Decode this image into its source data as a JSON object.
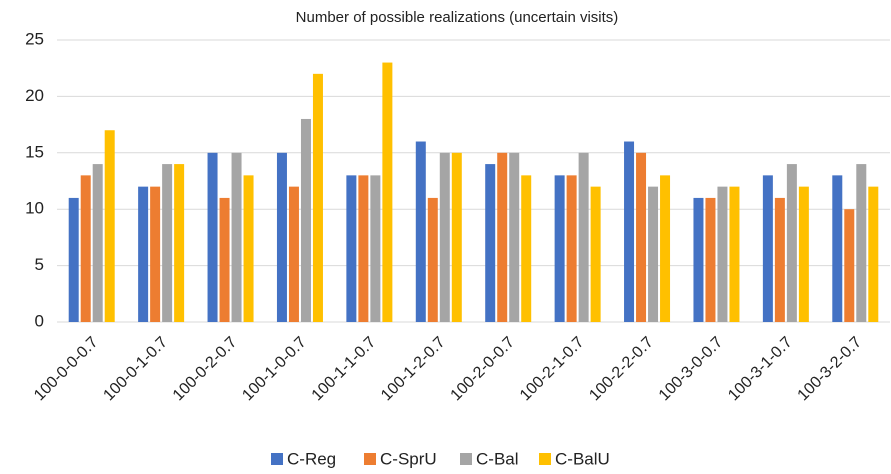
{
  "chart_data": {
    "type": "bar",
    "title": "Number of possible realizations (uncertain visits)",
    "categories": [
      "100-0-0-0.7",
      "100-0-1-0.7",
      "100-0-2-0.7",
      "100-1-0-0.7",
      "100-1-1-0.7",
      "100-1-2-0.7",
      "100-2-0-0.7",
      "100-2-1-0.7",
      "100-2-2-0.7",
      "100-3-0-0.7",
      "100-3-1-0.7",
      "100-3-2-0.7"
    ],
    "series": [
      {
        "name": "C-Reg",
        "color": "#4472c4",
        "values": [
          11,
          12,
          15,
          15,
          13,
          16,
          14,
          13,
          16,
          11,
          13,
          13
        ]
      },
      {
        "name": "C-SprU",
        "color": "#ed7d31",
        "values": [
          13,
          12,
          11,
          12,
          13,
          11,
          15,
          13,
          15,
          11,
          11,
          10
        ]
      },
      {
        "name": "C-Bal",
        "color": "#a5a5a5",
        "values": [
          14,
          14,
          15,
          18,
          13,
          15,
          15,
          15,
          12,
          12,
          14,
          14
        ]
      },
      {
        "name": "C-BalU",
        "color": "#ffc000",
        "values": [
          17,
          14,
          13,
          22,
          23,
          15,
          13,
          12,
          13,
          12,
          12,
          12
        ]
      }
    ],
    "ylim": [
      0,
      25
    ],
    "yticks": [
      0,
      5,
      10,
      15,
      20,
      25
    ],
    "grid": true,
    "legend": "bottom"
  }
}
